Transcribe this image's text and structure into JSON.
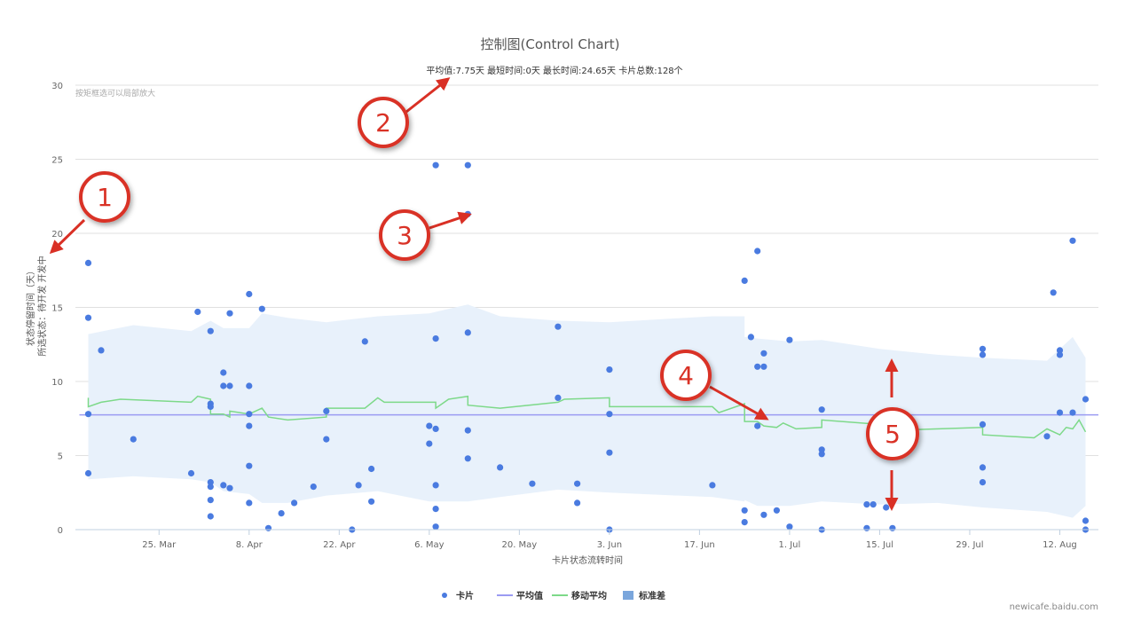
{
  "chart_data": {
    "type": "scatter",
    "title": "控制图(Control Chart)",
    "subtitle": "平均值:7.75天  最短时间:0天  最长时间:24.65天  卡片总数:128个",
    "zoom_hint": "按矩框选可以局部放大",
    "xlabel": "卡片状态流转时间",
    "ylabel_lines": [
      "状态停留时间（天）",
      "所选状态：待开发 开发中"
    ],
    "credit": "newicafe.baidu.com",
    "ylim": [
      0,
      30
    ],
    "yticks": [
      0,
      5,
      10,
      15,
      20,
      25,
      30
    ],
    "xlim": [
      "2019-03-12",
      "2019-08-18"
    ],
    "xticks": [
      {
        "date": "2019-03-25",
        "label": "25. Mar"
      },
      {
        "date": "2019-04-08",
        "label": "8. Apr"
      },
      {
        "date": "2019-04-22",
        "label": "22. Apr"
      },
      {
        "date": "2019-05-06",
        "label": "6. May"
      },
      {
        "date": "2019-05-20",
        "label": "20. May"
      },
      {
        "date": "2019-06-03",
        "label": "3. Jun"
      },
      {
        "date": "2019-06-17",
        "label": "17. Jun"
      },
      {
        "date": "2019-07-01",
        "label": "1. Jul"
      },
      {
        "date": "2019-07-15",
        "label": "15. Jul"
      },
      {
        "date": "2019-07-29",
        "label": "29. Jul"
      },
      {
        "date": "2019-08-12",
        "label": "12. Aug"
      }
    ],
    "grid": true,
    "legend_position": "bottom-center",
    "legend": [
      {
        "name": "卡片",
        "kind": "dot",
        "color": "#4a7be0"
      },
      {
        "name": "平均值",
        "kind": "line",
        "color": "#9b9bf2"
      },
      {
        "name": "移动平均",
        "kind": "line",
        "color": "#7dd989"
      },
      {
        "name": "标准差",
        "kind": "area",
        "color": "#7aa6dc"
      }
    ],
    "colors": {
      "points": "#4a7be0",
      "mean": "#9b9bf2",
      "moving_avg": "#7dd989",
      "band": "#e8f1fb",
      "grid": "#e0e0e0",
      "axis": "#c0d0e0",
      "text": "#666666"
    },
    "mean_value": 7.75,
    "points": [
      {
        "x": "2019-03-14",
        "y": 18.0
      },
      {
        "x": "2019-03-14",
        "y": 14.3
      },
      {
        "x": "2019-03-14",
        "y": 7.8
      },
      {
        "x": "2019-03-14",
        "y": 3.8
      },
      {
        "x": "2019-03-16",
        "y": 12.1
      },
      {
        "x": "2019-03-21",
        "y": 6.1
      },
      {
        "x": "2019-03-30",
        "y": 3.8
      },
      {
        "x": "2019-03-31",
        "y": 14.7
      },
      {
        "x": "2019-04-02",
        "y": 13.4
      },
      {
        "x": "2019-04-02",
        "y": 8.5
      },
      {
        "x": "2019-04-02",
        "y": 8.3
      },
      {
        "x": "2019-04-02",
        "y": 3.2
      },
      {
        "x": "2019-04-02",
        "y": 2.9
      },
      {
        "x": "2019-04-02",
        "y": 2.0
      },
      {
        "x": "2019-04-02",
        "y": 0.9
      },
      {
        "x": "2019-04-04",
        "y": 10.6
      },
      {
        "x": "2019-04-04",
        "y": 9.7
      },
      {
        "x": "2019-04-04",
        "y": 3.0
      },
      {
        "x": "2019-04-05",
        "y": 14.6
      },
      {
        "x": "2019-04-05",
        "y": 9.7
      },
      {
        "x": "2019-04-05",
        "y": 2.8
      },
      {
        "x": "2019-04-08",
        "y": 15.9
      },
      {
        "x": "2019-04-08",
        "y": 9.7
      },
      {
        "x": "2019-04-08",
        "y": 7.8
      },
      {
        "x": "2019-04-08",
        "y": 7.0
      },
      {
        "x": "2019-04-08",
        "y": 4.3
      },
      {
        "x": "2019-04-08",
        "y": 1.8
      },
      {
        "x": "2019-04-10",
        "y": 14.9
      },
      {
        "x": "2019-04-11",
        "y": 0.1
      },
      {
        "x": "2019-04-13",
        "y": 1.1
      },
      {
        "x": "2019-04-15",
        "y": 1.8
      },
      {
        "x": "2019-04-18",
        "y": 2.9
      },
      {
        "x": "2019-04-20",
        "y": 8.0
      },
      {
        "x": "2019-04-20",
        "y": 6.1
      },
      {
        "x": "2019-04-24",
        "y": 0.0
      },
      {
        "x": "2019-04-25",
        "y": 3.0
      },
      {
        "x": "2019-04-26",
        "y": 12.7
      },
      {
        "x": "2019-04-27",
        "y": 4.1
      },
      {
        "x": "2019-04-27",
        "y": 1.9
      },
      {
        "x": "2019-05-06",
        "y": 7.0
      },
      {
        "x": "2019-05-06",
        "y": 5.8
      },
      {
        "x": "2019-05-07",
        "y": 24.6
      },
      {
        "x": "2019-05-07",
        "y": 12.9
      },
      {
        "x": "2019-05-07",
        "y": 6.8
      },
      {
        "x": "2019-05-07",
        "y": 3.0
      },
      {
        "x": "2019-05-07",
        "y": 1.4
      },
      {
        "x": "2019-05-07",
        "y": 0.2
      },
      {
        "x": "2019-05-12",
        "y": 24.6
      },
      {
        "x": "2019-05-12",
        "y": 21.3
      },
      {
        "x": "2019-05-12",
        "y": 13.3
      },
      {
        "x": "2019-05-12",
        "y": 6.7
      },
      {
        "x": "2019-05-12",
        "y": 4.8
      },
      {
        "x": "2019-05-17",
        "y": 4.2
      },
      {
        "x": "2019-05-22",
        "y": 3.1
      },
      {
        "x": "2019-05-26",
        "y": 13.7
      },
      {
        "x": "2019-05-26",
        "y": 8.9
      },
      {
        "x": "2019-05-29",
        "y": 3.1
      },
      {
        "x": "2019-05-29",
        "y": 1.8
      },
      {
        "x": "2019-06-03",
        "y": 10.8
      },
      {
        "x": "2019-06-03",
        "y": 7.8
      },
      {
        "x": "2019-06-03",
        "y": 5.2
      },
      {
        "x": "2019-06-03",
        "y": 0.0
      },
      {
        "x": "2019-06-19",
        "y": 3.0
      },
      {
        "x": "2019-06-24",
        "y": 16.8
      },
      {
        "x": "2019-06-24",
        "y": 1.3
      },
      {
        "x": "2019-06-24",
        "y": 0.5
      },
      {
        "x": "2019-06-25",
        "y": 13.0
      },
      {
        "x": "2019-06-26",
        "y": 18.8
      },
      {
        "x": "2019-06-26",
        "y": 11.0
      },
      {
        "x": "2019-06-27",
        "y": 11.9
      },
      {
        "x": "2019-06-27",
        "y": 11.0
      },
      {
        "x": "2019-06-26",
        "y": 7.0
      },
      {
        "x": "2019-06-27",
        "y": 1.0
      },
      {
        "x": "2019-06-29",
        "y": 1.3
      },
      {
        "x": "2019-07-01",
        "y": 12.8
      },
      {
        "x": "2019-07-01",
        "y": 0.2
      },
      {
        "x": "2019-07-06",
        "y": 5.1
      },
      {
        "x": "2019-07-06",
        "y": 5.4
      },
      {
        "x": "2019-07-06",
        "y": 8.1
      },
      {
        "x": "2019-07-06",
        "y": 0.0
      },
      {
        "x": "2019-07-13",
        "y": 1.7
      },
      {
        "x": "2019-07-13",
        "y": 0.1
      },
      {
        "x": "2019-07-14",
        "y": 1.7
      },
      {
        "x": "2019-07-16",
        "y": 1.5
      },
      {
        "x": "2019-07-17",
        "y": 0.1
      },
      {
        "x": "2019-07-31",
        "y": 12.2
      },
      {
        "x": "2019-07-31",
        "y": 11.8
      },
      {
        "x": "2019-07-31",
        "y": 7.1
      },
      {
        "x": "2019-07-31",
        "y": 4.2
      },
      {
        "x": "2019-07-31",
        "y": 3.2
      },
      {
        "x": "2019-08-10",
        "y": 6.3
      },
      {
        "x": "2019-08-11",
        "y": 16.0
      },
      {
        "x": "2019-08-12",
        "y": 12.1
      },
      {
        "x": "2019-08-12",
        "y": 11.8
      },
      {
        "x": "2019-08-12",
        "y": 7.9
      },
      {
        "x": "2019-08-14",
        "y": 19.5
      },
      {
        "x": "2019-08-14",
        "y": 7.9
      },
      {
        "x": "2019-08-16",
        "y": 8.8
      },
      {
        "x": "2019-08-16",
        "y": 0.6
      },
      {
        "x": "2019-08-16",
        "y": 0.0
      }
    ],
    "moving_average": [
      {
        "x": "2019-03-14",
        "y": 8.9
      },
      {
        "x": "2019-03-14",
        "y": 8.3
      },
      {
        "x": "2019-03-16",
        "y": 8.6
      },
      {
        "x": "2019-03-19",
        "y": 8.8
      },
      {
        "x": "2019-03-30",
        "y": 8.6
      },
      {
        "x": "2019-03-31",
        "y": 9.0
      },
      {
        "x": "2019-04-02",
        "y": 8.8
      },
      {
        "x": "2019-04-02",
        "y": 7.8
      },
      {
        "x": "2019-04-04",
        "y": 7.8
      },
      {
        "x": "2019-04-05",
        "y": 7.6
      },
      {
        "x": "2019-04-05",
        "y": 8.0
      },
      {
        "x": "2019-04-08",
        "y": 7.8
      },
      {
        "x": "2019-04-10",
        "y": 8.2
      },
      {
        "x": "2019-04-11",
        "y": 7.6
      },
      {
        "x": "2019-04-14",
        "y": 7.4
      },
      {
        "x": "2019-04-20",
        "y": 7.6
      },
      {
        "x": "2019-04-20",
        "y": 8.2
      },
      {
        "x": "2019-04-26",
        "y": 8.2
      },
      {
        "x": "2019-04-28",
        "y": 8.9
      },
      {
        "x": "2019-04-29",
        "y": 8.6
      },
      {
        "x": "2019-05-07",
        "y": 8.6
      },
      {
        "x": "2019-05-07",
        "y": 8.2
      },
      {
        "x": "2019-05-08",
        "y": 8.5
      },
      {
        "x": "2019-05-09",
        "y": 8.8
      },
      {
        "x": "2019-05-12",
        "y": 9.0
      },
      {
        "x": "2019-05-12",
        "y": 8.4
      },
      {
        "x": "2019-05-17",
        "y": 8.2
      },
      {
        "x": "2019-05-26",
        "y": 8.6
      },
      {
        "x": "2019-05-27",
        "y": 8.8
      },
      {
        "x": "2019-06-03",
        "y": 8.9
      },
      {
        "x": "2019-06-03",
        "y": 8.3
      },
      {
        "x": "2019-06-19",
        "y": 8.3
      },
      {
        "x": "2019-06-20",
        "y": 7.9
      },
      {
        "x": "2019-06-24",
        "y": 8.5
      },
      {
        "x": "2019-06-24",
        "y": 7.3
      },
      {
        "x": "2019-06-26",
        "y": 7.3
      },
      {
        "x": "2019-06-27",
        "y": 7.0
      },
      {
        "x": "2019-06-29",
        "y": 6.9
      },
      {
        "x": "2019-06-30",
        "y": 7.2
      },
      {
        "x": "2019-07-02",
        "y": 6.8
      },
      {
        "x": "2019-07-06",
        "y": 6.9
      },
      {
        "x": "2019-07-06",
        "y": 7.4
      },
      {
        "x": "2019-07-15",
        "y": 7.1
      },
      {
        "x": "2019-07-17",
        "y": 6.7
      },
      {
        "x": "2019-07-31",
        "y": 6.9
      },
      {
        "x": "2019-07-31",
        "y": 6.4
      },
      {
        "x": "2019-08-08",
        "y": 6.2
      },
      {
        "x": "2019-08-10",
        "y": 6.8
      },
      {
        "x": "2019-08-12",
        "y": 6.4
      },
      {
        "x": "2019-08-13",
        "y": 6.9
      },
      {
        "x": "2019-08-14",
        "y": 6.8
      },
      {
        "x": "2019-08-15",
        "y": 7.4
      },
      {
        "x": "2019-08-16",
        "y": 6.6
      }
    ],
    "std_band": [
      {
        "x": "2019-03-14",
        "upper": 13.2,
        "lower": 3.4
      },
      {
        "x": "2019-03-21",
        "upper": 13.8,
        "lower": 3.6
      },
      {
        "x": "2019-03-30",
        "upper": 13.4,
        "lower": 3.4
      },
      {
        "x": "2019-04-02",
        "upper": 14.1,
        "lower": 3.2
      },
      {
        "x": "2019-04-04",
        "upper": 13.6,
        "lower": 2.6
      },
      {
        "x": "2019-04-08",
        "upper": 13.6,
        "lower": 2.4
      },
      {
        "x": "2019-04-10",
        "upper": 14.6,
        "lower": 1.8
      },
      {
        "x": "2019-04-14",
        "upper": 14.3,
        "lower": 1.8
      },
      {
        "x": "2019-04-20",
        "upper": 14.0,
        "lower": 2.3
      },
      {
        "x": "2019-04-28",
        "upper": 14.4,
        "lower": 2.6
      },
      {
        "x": "2019-05-06",
        "upper": 14.6,
        "lower": 1.9
      },
      {
        "x": "2019-05-12",
        "upper": 15.2,
        "lower": 1.9
      },
      {
        "x": "2019-05-17",
        "upper": 14.4,
        "lower": 2.2
      },
      {
        "x": "2019-05-26",
        "upper": 14.1,
        "lower": 2.7
      },
      {
        "x": "2019-06-03",
        "upper": 14.0,
        "lower": 2.5
      },
      {
        "x": "2019-06-19",
        "upper": 14.4,
        "lower": 2.2
      },
      {
        "x": "2019-06-24",
        "upper": 14.4,
        "lower": 1.9
      },
      {
        "x": "2019-06-24",
        "upper": 13.0,
        "lower": 2.0
      },
      {
        "x": "2019-06-26",
        "upper": 12.9,
        "lower": 1.6
      },
      {
        "x": "2019-07-01",
        "upper": 12.7,
        "lower": 1.6
      },
      {
        "x": "2019-07-06",
        "upper": 12.8,
        "lower": 1.9
      },
      {
        "x": "2019-07-15",
        "upper": 12.2,
        "lower": 1.7
      },
      {
        "x": "2019-07-24",
        "upper": 11.8,
        "lower": 1.8
      },
      {
        "x": "2019-07-31",
        "upper": 11.6,
        "lower": 1.5
      },
      {
        "x": "2019-08-10",
        "upper": 11.4,
        "lower": 1.2
      },
      {
        "x": "2019-08-14",
        "upper": 13.0,
        "lower": 0.8
      },
      {
        "x": "2019-08-16",
        "upper": 11.6,
        "lower": 1.6
      }
    ]
  },
  "annotations": [
    {
      "label": "1",
      "color": "#d93025"
    },
    {
      "label": "2",
      "color": "#d93025"
    },
    {
      "label": "3",
      "color": "#d93025"
    },
    {
      "label": "4",
      "color": "#d93025"
    },
    {
      "label": "5",
      "color": "#d93025"
    }
  ]
}
